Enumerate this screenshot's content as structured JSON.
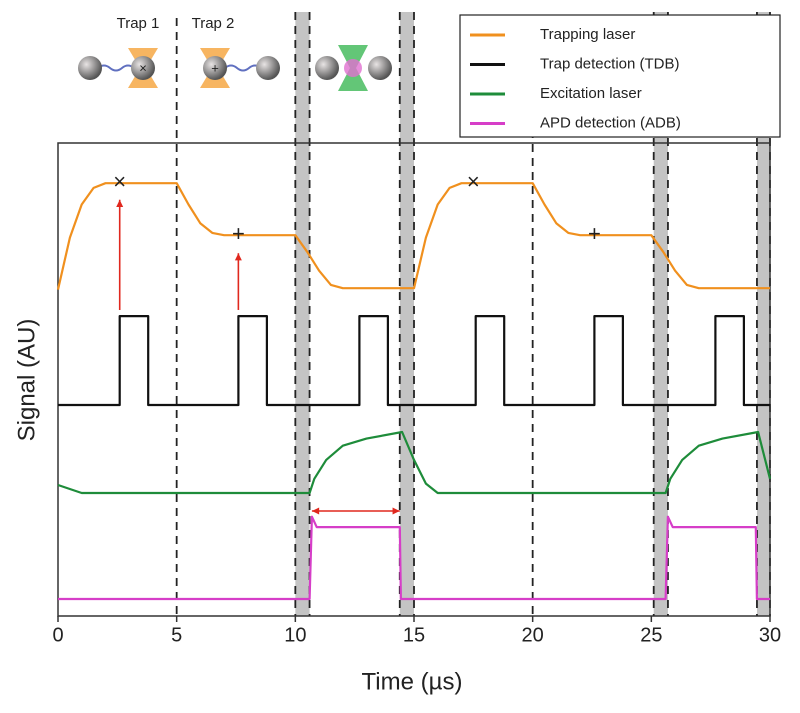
{
  "chart_data": {
    "type": "line",
    "xlabel": "Time (µs)",
    "ylabel": "Signal (AU)",
    "xlim": [
      0,
      30
    ],
    "xticks": [
      0,
      5,
      10,
      15,
      20,
      25,
      30
    ],
    "ylim": [
      0,
      100
    ],
    "series": [
      {
        "name": "Trapping laser",
        "color": "#f0901e",
        "x": [
          0,
          0.5,
          1,
          1.5,
          2,
          5,
          5.5,
          6,
          6.5,
          7,
          10,
          10.5,
          11,
          11.5,
          12,
          15,
          15.5,
          16,
          16.5,
          17,
          20,
          20.5,
          21,
          21.5,
          22,
          25,
          25.5,
          26,
          26.5,
          27,
          30
        ],
        "values": [
          69,
          80,
          87,
          90.5,
          91.5,
          91.5,
          87,
          83,
          81,
          80.5,
          80.5,
          77,
          73,
          70,
          69.3,
          69.3,
          80,
          87,
          90.5,
          91.5,
          91.5,
          87,
          83,
          81,
          80.5,
          80.5,
          77,
          73,
          70,
          69.3,
          69.3
        ]
      },
      {
        "name": "Trap detection (TDB)",
        "color": "#111111",
        "x": [
          0,
          2.6,
          2.6,
          3.8,
          3.8,
          7.6,
          7.6,
          8.8,
          8.8,
          12.7,
          12.7,
          13.9,
          13.9,
          17.6,
          17.6,
          18.8,
          18.8,
          22.6,
          22.6,
          23.8,
          23.8,
          27.7,
          27.7,
          28.9,
          28.9,
          30
        ],
        "values": [
          44.6,
          44.6,
          63.4,
          63.4,
          44.6,
          44.6,
          63.4,
          63.4,
          44.6,
          44.6,
          63.4,
          63.4,
          44.6,
          44.6,
          63.4,
          63.4,
          44.6,
          44.6,
          63.4,
          63.4,
          44.6,
          44.6,
          63.4,
          63.4,
          44.6,
          44.6
        ]
      },
      {
        "name": "Excitation laser",
        "color": "#1e8c3a",
        "x": [
          0,
          1,
          10.6,
          10.8,
          11.3,
          12,
          13,
          14.5,
          15,
          15.5,
          16,
          25.6,
          25.8,
          26.3,
          27,
          28,
          29.5,
          30
        ],
        "values": [
          27.7,
          26,
          26,
          29,
          33,
          36,
          37.5,
          38.9,
          33,
          28,
          26,
          26,
          29,
          33,
          36,
          37.5,
          38.9,
          29
        ]
      },
      {
        "name": "APD detection (ADB)",
        "color": "#d63ec8",
        "x": [
          0,
          10.6,
          10.7,
          10.9,
          14.4,
          14.45,
          25.6,
          25.7,
          25.9,
          29.4,
          29.45,
          30
        ],
        "values": [
          3.6,
          3.6,
          21,
          18.8,
          18.8,
          3.6,
          3.6,
          21,
          18.8,
          18.8,
          3.6,
          3.6
        ]
      }
    ],
    "shaded_regions": [
      [
        10,
        10.6
      ],
      [
        14.4,
        15
      ],
      [
        25.1,
        25.7
      ],
      [
        29.45,
        30
      ]
    ],
    "vlines": [
      5,
      20
    ],
    "arrows": [
      {
        "x": [
          2.6,
          2.6
        ],
        "y": [
          64.7,
          88
        ]
      },
      {
        "x": [
          7.6,
          7.6
        ],
        "y": [
          64.7,
          76.7
        ]
      },
      {
        "x": [
          10.7,
          14.4
        ],
        "y": [
          22.2,
          22.2
        ]
      }
    ],
    "markers": [
      {
        "x": 2.6,
        "y": 91.5,
        "label": "×"
      },
      {
        "x": 7.6,
        "y": 80.5,
        "label": "+"
      },
      {
        "x": 17.5,
        "y": 91.5,
        "label": "×"
      },
      {
        "x": 22.6,
        "y": 80.5,
        "label": "+"
      }
    ],
    "trap_labels": [
      "Trap 1",
      "Trap 2"
    ]
  }
}
